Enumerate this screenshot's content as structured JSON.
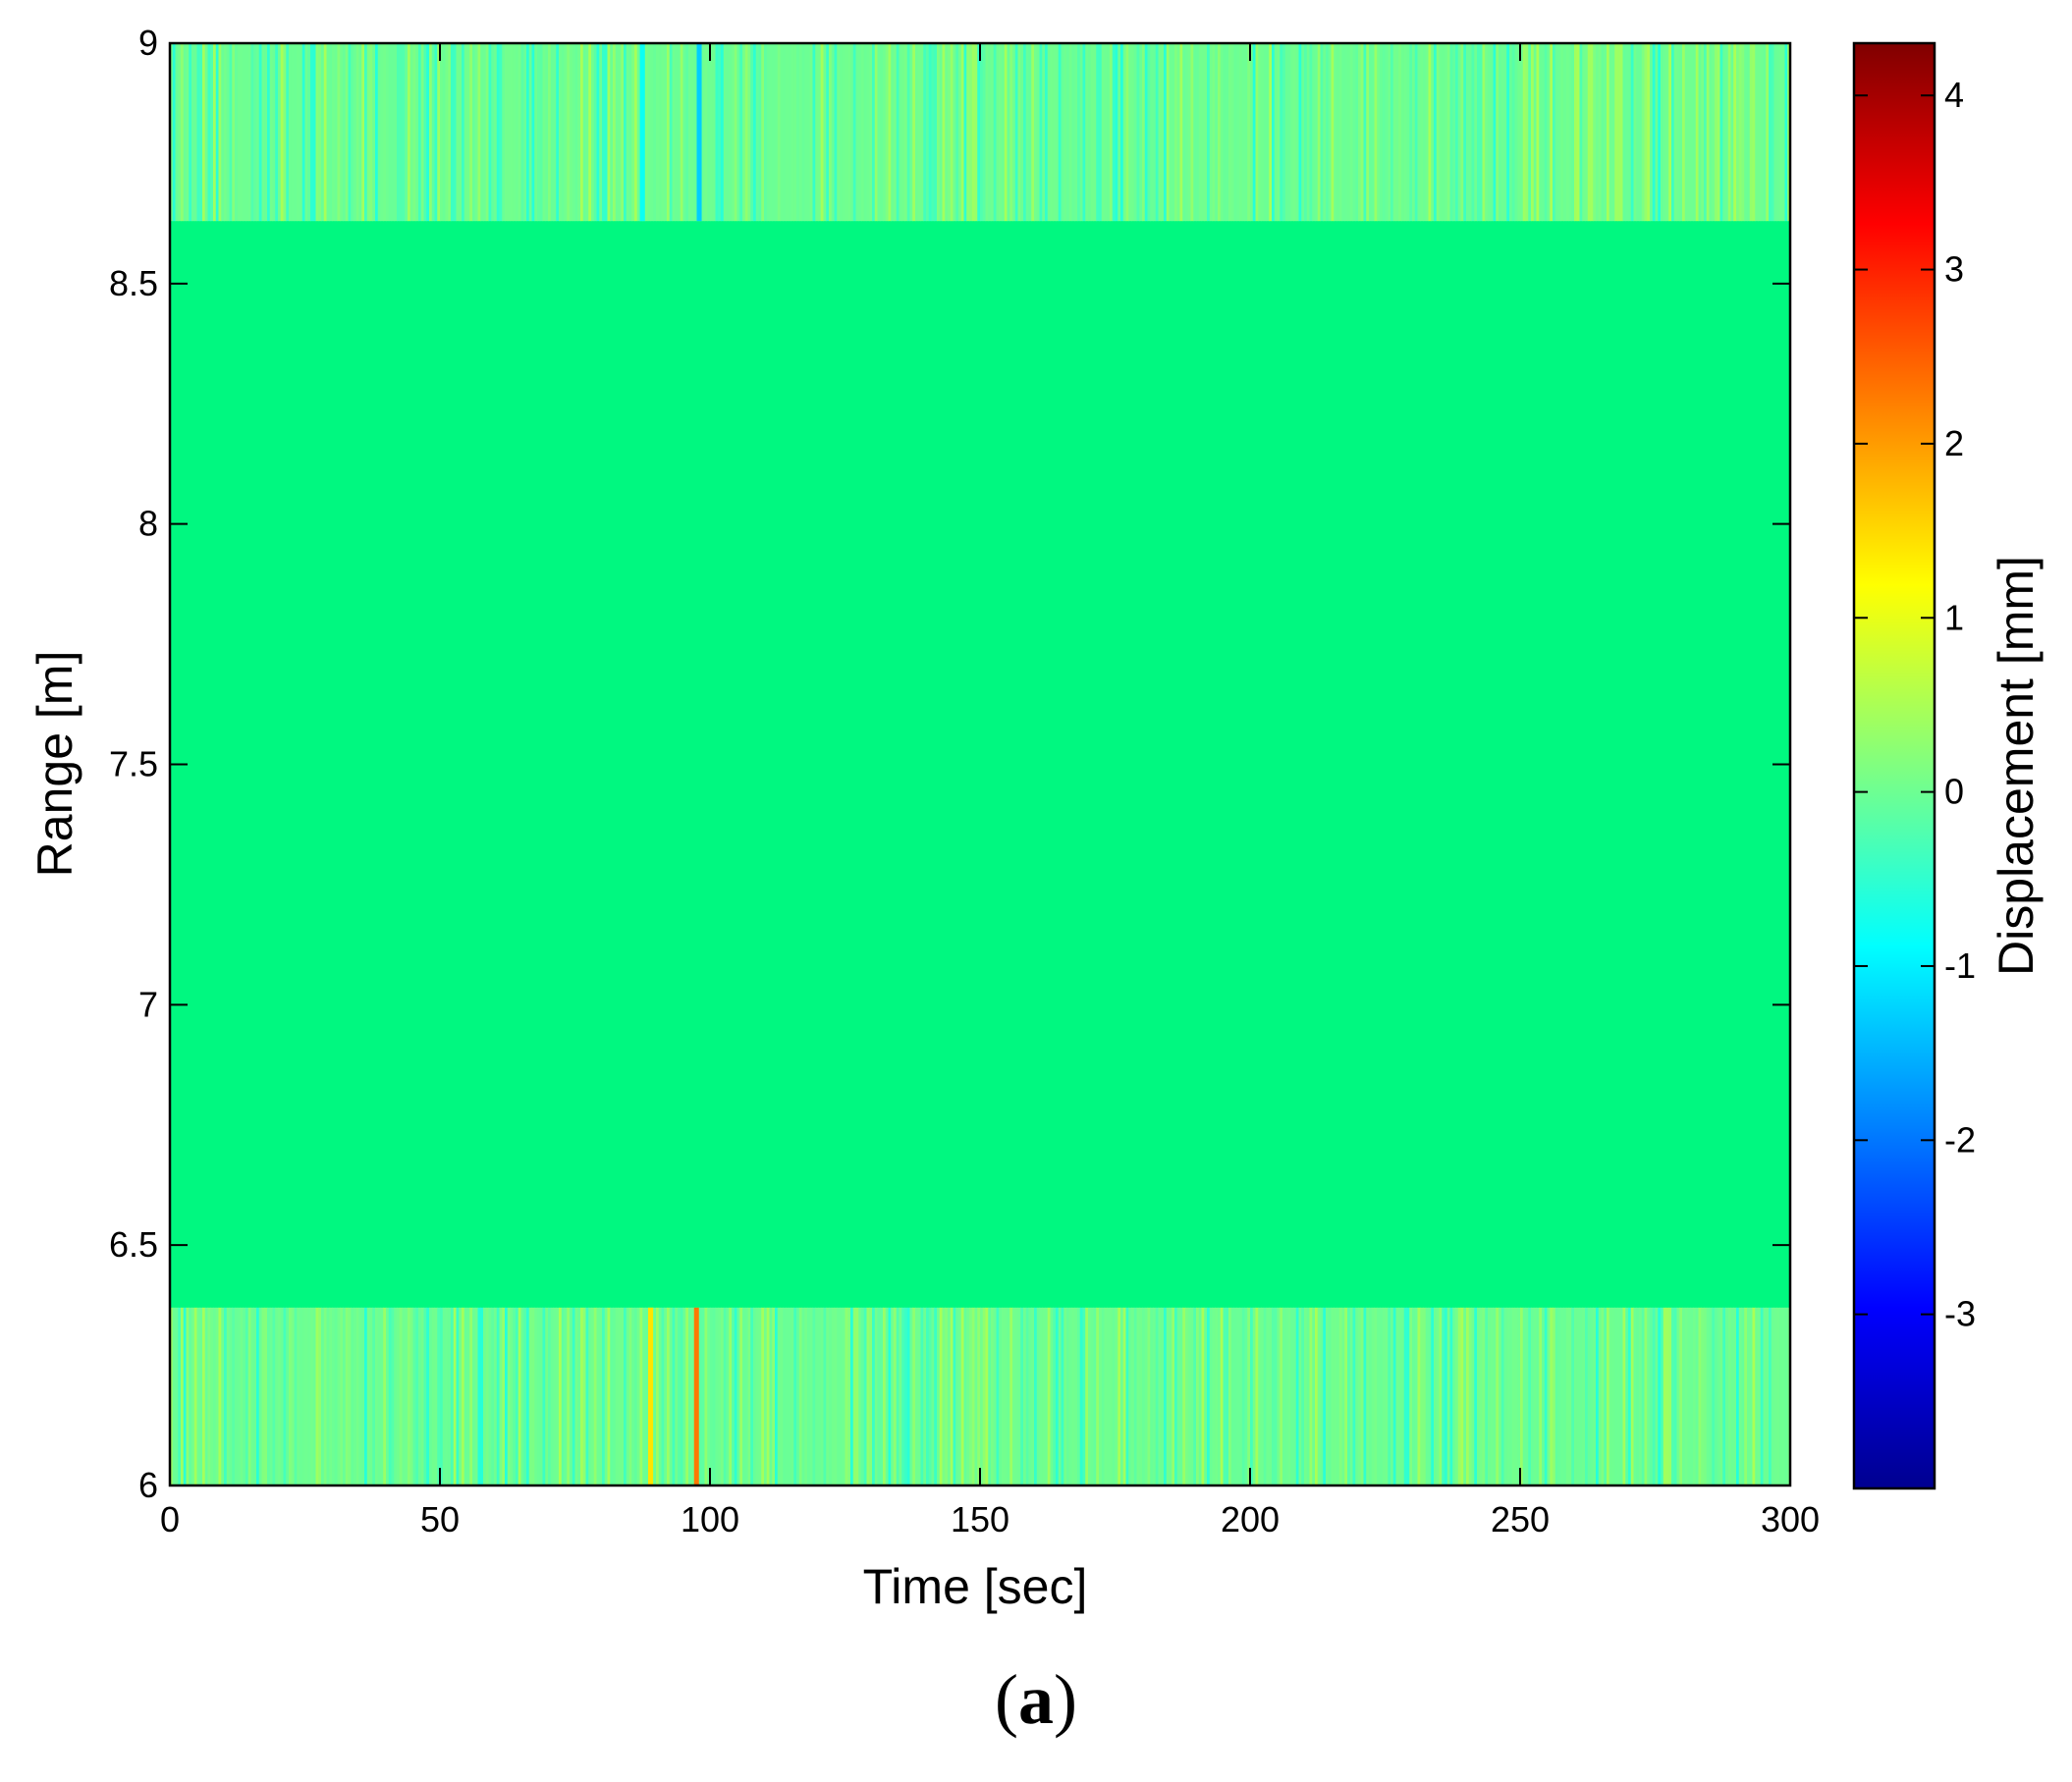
{
  "chart_data": {
    "type": "heatmap",
    "title": "",
    "xlabel": "Time [sec]",
    "ylabel": "Range [m]",
    "xlim": [
      0,
      300
    ],
    "ylim": [
      6,
      9
    ],
    "xticks": [
      "0",
      "50",
      "100",
      "150",
      "200",
      "250",
      "300"
    ],
    "yticks": [
      "6",
      "6.5",
      "7",
      "7.5",
      "8",
      "8.5",
      "9"
    ],
    "colorbar": {
      "label": "Displacement [mm]",
      "colormap": "jet",
      "range": [
        -4,
        4.3
      ],
      "ticks": [
        "-3",
        "-2",
        "-1",
        "0",
        "1",
        "2",
        "3",
        "4"
      ],
      "colors": [
        "#00008f",
        "#0000ff",
        "#0080ff",
        "#00ffff",
        "#80ff80",
        "#ffff00",
        "#ff8000",
        "#ff0000",
        "#800000"
      ]
    },
    "background_value": 0,
    "bands": [
      {
        "name": "upper",
        "range_m": [
          8.63,
          9.0
        ],
        "typical_values_mm": [
          -0.6,
          0.5
        ]
      },
      {
        "name": "lower",
        "range_m": [
          6.0,
          6.37
        ],
        "typical_values_mm": [
          -0.6,
          0.5
        ]
      }
    ],
    "notable_lines": [
      {
        "time_sec": 87.5,
        "band": "upper",
        "value_mm": -0.8
      },
      {
        "time_sec": 98,
        "band": "upper",
        "value_mm": -1.3
      },
      {
        "time_sec": 89,
        "band": "lower",
        "value_mm": 1.4
      },
      {
        "time_sec": 97.5,
        "band": "lower",
        "value_mm": 2.3
      }
    ]
  },
  "panel_label": {
    "open": "(",
    "letter": "a",
    "close": ")"
  }
}
